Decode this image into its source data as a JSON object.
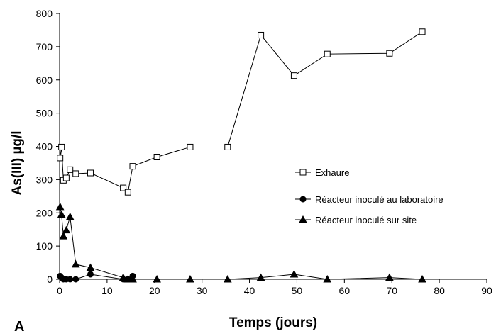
{
  "panel_label": "A",
  "chart_data": {
    "type": "line",
    "title": "",
    "xlabel": "Temps (jours)",
    "ylabel": "As(III) µg/l",
    "xlim": [
      0,
      90
    ],
    "ylim": [
      0,
      800
    ],
    "xticks": [
      0,
      10,
      20,
      30,
      40,
      50,
      60,
      70,
      80,
      90
    ],
    "yticks": [
      0,
      100,
      200,
      300,
      400,
      500,
      600,
      700,
      800
    ],
    "grid": false,
    "legend_position": "middle-right",
    "series": [
      {
        "name": "Exhaure",
        "marker": "square-open",
        "color": "#000000",
        "x": [
          0.1,
          0.4,
          0.8,
          1.4,
          2.2,
          3.4,
          6.5,
          13.4,
          14.4,
          15.4,
          20.5,
          27.5,
          35.4,
          42.4,
          49.4,
          56.4,
          69.5,
          76.4
        ],
        "y": [
          365,
          398,
          298,
          305,
          330,
          318,
          320,
          275,
          262,
          340,
          368,
          398,
          398,
          735,
          613,
          678,
          680,
          745
        ]
      },
      {
        "name": "Réacteur inoculé au laboratoire",
        "marker": "circle-filled",
        "color": "#000000",
        "x": [
          0.1,
          0.4,
          0.8,
          1.4,
          2.2,
          3.4,
          6.5,
          13.4,
          14.4,
          15.4
        ],
        "y": [
          10,
          5,
          0,
          0,
          0,
          0,
          15,
          0,
          0,
          10
        ]
      },
      {
        "name": "Réacteur inoculé sur site",
        "marker": "triangle-filled",
        "color": "#000000",
        "x": [
          0.1,
          0.4,
          0.8,
          1.4,
          2.2,
          3.4,
          6.5,
          13.4,
          14.4,
          15.4,
          20.5,
          27.5,
          35.4,
          42.4,
          49.4,
          56.4,
          69.5,
          76.4
        ],
        "y": [
          218,
          195,
          130,
          148,
          188,
          45,
          35,
          5,
          0,
          0,
          0,
          0,
          0,
          5,
          15,
          0,
          5,
          0
        ]
      }
    ]
  }
}
